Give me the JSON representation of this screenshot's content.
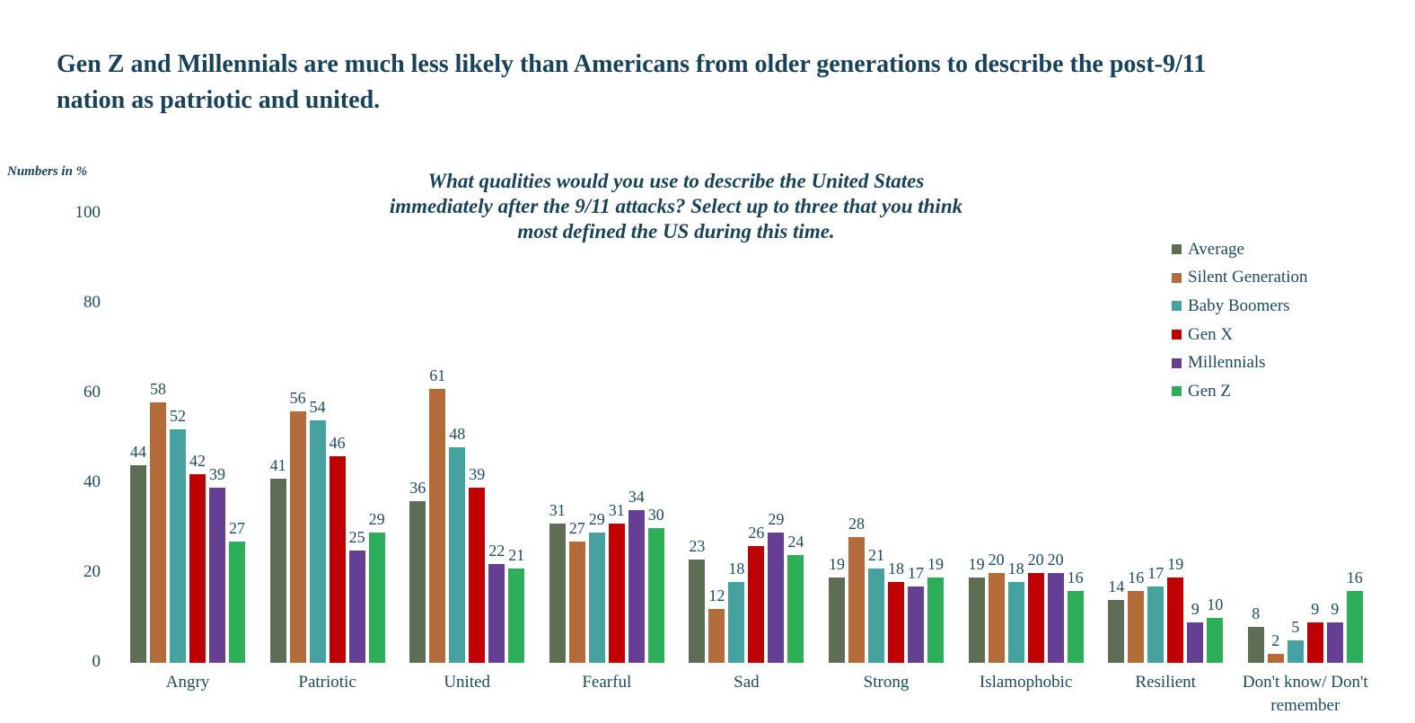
{
  "header": {
    "lines": [
      "Gen Z and Millennials are much less likely than Americans from older generations to describe the post-9/11",
      "nation as patriotic and united."
    ]
  },
  "axis_note": "Numbers in %",
  "chart_data": {
    "type": "bar",
    "title": "What qualities would you use to describe the United States immediately after the 9/11 attacks? Select up to three that you think most defined the US during this time.",
    "title_lines": [
      "What qualities would you use to describe the United States",
      "immediately after the 9/11 attacks? Select up to three that you think",
      "most defined the US during this time."
    ],
    "unit_note": "Numbers in %",
    "categories": [
      "Angry",
      "Patriotic",
      "United",
      "Fearful",
      "Sad",
      "Strong",
      "Islamophobic",
      "Resilient",
      "Don't know/ Don't remember"
    ],
    "series": [
      {
        "name": "Average",
        "color": "#5d6e55",
        "values": [
          44,
          41,
          36,
          31,
          23,
          19,
          19,
          14,
          8
        ]
      },
      {
        "name": "Silent Generation",
        "color": "#b36c39",
        "values": [
          58,
          56,
          61,
          27,
          12,
          28,
          20,
          16,
          2
        ]
      },
      {
        "name": "Baby Boomers",
        "color": "#45a29f",
        "values": [
          52,
          54,
          48,
          29,
          18,
          21,
          18,
          17,
          5
        ]
      },
      {
        "name": "Gen X",
        "color": "#bf0103",
        "values": [
          42,
          46,
          39,
          31,
          26,
          18,
          20,
          19,
          9
        ]
      },
      {
        "name": "Millennials",
        "color": "#653f94",
        "values": [
          39,
          25,
          22,
          34,
          29,
          17,
          20,
          9,
          9
        ]
      },
      {
        "name": "Gen Z",
        "color": "#2daf5a",
        "values": [
          27,
          29,
          21,
          30,
          24,
          19,
          16,
          10,
          16
        ]
      }
    ],
    "y_ticks": [
      0,
      20,
      40,
      60,
      80,
      100
    ],
    "ylim": [
      0,
      100
    ],
    "grid": false,
    "legend_position": "top-right",
    "text_color": "#1d4a5f"
  }
}
